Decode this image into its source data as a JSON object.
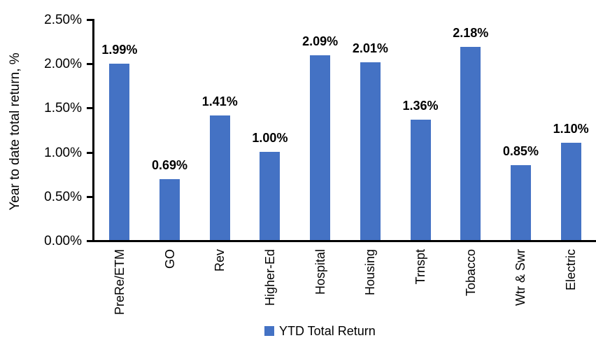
{
  "chart_data": {
    "type": "bar",
    "title": "",
    "xlabel": "",
    "ylabel": "Year to date total return, %",
    "categories": [
      "PreRe/ETM",
      "GO",
      "Rev",
      "Higher-Ed",
      "Hospital",
      "Housing",
      "Trnspt",
      "Tobacco",
      "Wtr & Swr",
      "Electric"
    ],
    "series": [
      {
        "name": "YTD Total Return",
        "values": [
          1.99,
          0.69,
          1.41,
          1.0,
          2.09,
          2.01,
          1.36,
          2.18,
          0.85,
          1.1
        ]
      }
    ],
    "value_labels": [
      "1.99%",
      "0.69%",
      "1.41%",
      "1.00%",
      "2.09%",
      "2.01%",
      "1.36%",
      "2.18%",
      "0.85%",
      "1.10%"
    ],
    "y_tick_labels": [
      "0.00%",
      "0.50%",
      "1.00%",
      "1.50%",
      "2.00%",
      "2.50%"
    ],
    "y_tick_values": [
      0,
      0.5,
      1.0,
      1.5,
      2.0,
      2.5
    ],
    "ylim": [
      0,
      2.5
    ],
    "grid": false,
    "legend": {
      "position": "bottom",
      "label": "YTD Total Return"
    },
    "colors": {
      "bar": "#4472C4",
      "axis": "#000000",
      "text": "#000000"
    }
  }
}
